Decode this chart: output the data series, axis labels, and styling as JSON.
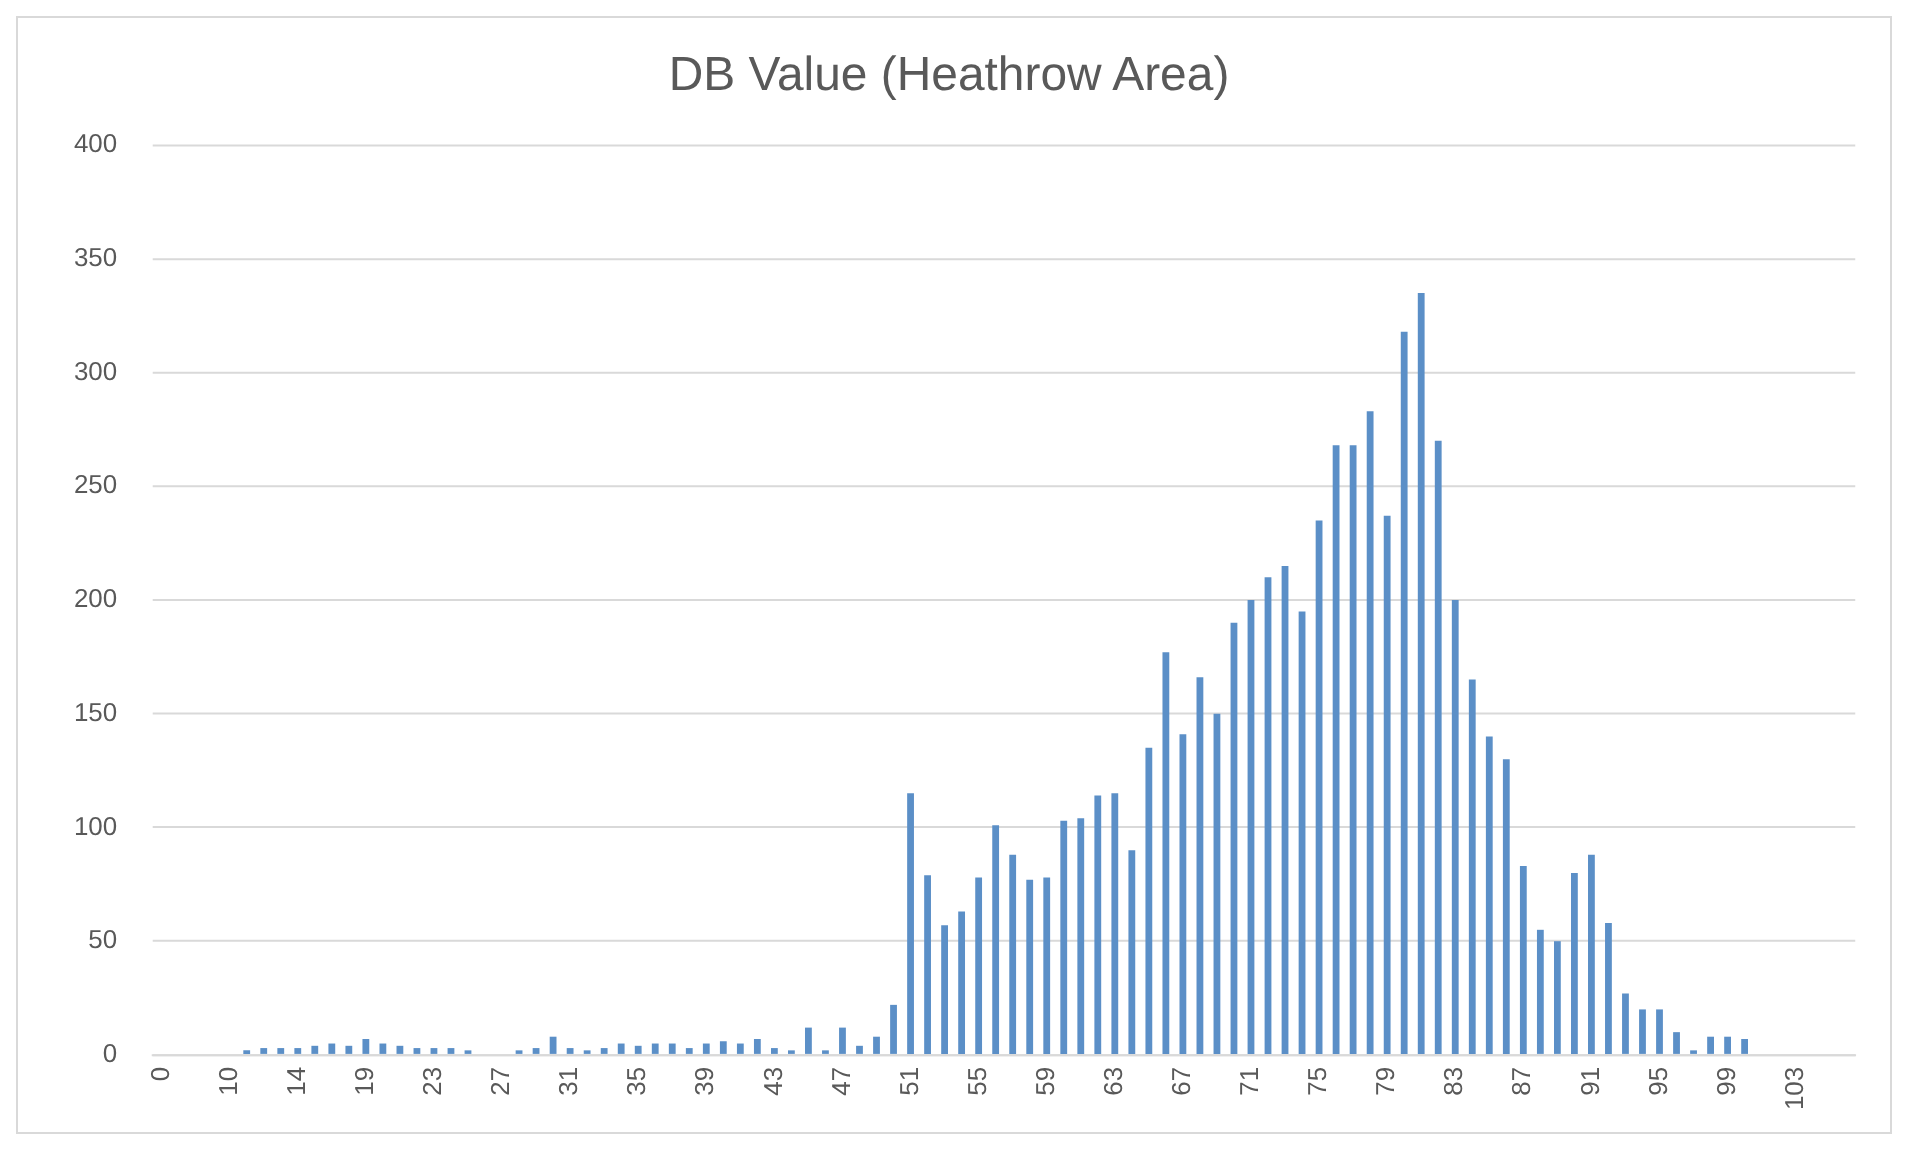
{
  "chart_data": {
    "type": "bar",
    "title": "DB Value (Heathrow Area)",
    "categories": [
      "0",
      null,
      null,
      null,
      "10",
      null,
      null,
      null,
      "14",
      null,
      null,
      null,
      "19",
      null,
      null,
      null,
      "23",
      null,
      null,
      null,
      "27",
      null,
      null,
      null,
      "31",
      null,
      null,
      null,
      "35",
      null,
      null,
      null,
      "39",
      null,
      null,
      null,
      "43",
      null,
      null,
      null,
      "47",
      null,
      null,
      null,
      "51",
      null,
      null,
      null,
      "55",
      null,
      null,
      null,
      "59",
      null,
      null,
      null,
      "63",
      null,
      null,
      null,
      "67",
      null,
      null,
      null,
      "71",
      null,
      null,
      null,
      "75",
      null,
      null,
      null,
      "79",
      null,
      null,
      null,
      "83",
      null,
      null,
      null,
      "87",
      null,
      null,
      null,
      "91",
      null,
      null,
      null,
      "95",
      null,
      null,
      null,
      "99",
      null,
      null,
      null,
      "103",
      null,
      null,
      null
    ],
    "values": [
      0,
      0,
      0,
      0,
      0,
      2,
      3,
      3,
      3,
      4,
      5,
      4,
      7,
      5,
      4,
      3,
      3,
      3,
      2,
      0,
      0,
      2,
      3,
      8,
      3,
      2,
      3,
      5,
      4,
      5,
      5,
      3,
      5,
      6,
      5,
      7,
      3,
      2,
      12,
      2,
      12,
      4,
      8,
      22,
      115,
      79,
      57,
      63,
      78,
      101,
      88,
      77,
      78,
      103,
      104,
      114,
      115,
      90,
      135,
      177,
      141,
      166,
      150,
      190,
      200,
      210,
      215,
      195,
      235,
      268,
      268,
      283,
      237,
      318,
      335,
      270,
      200,
      165,
      140,
      130,
      83,
      55,
      50,
      80,
      88,
      58,
      27,
      20,
      20,
      10,
      2,
      8,
      8,
      7,
      0,
      0,
      0,
      0,
      0,
      0
    ],
    "color": "#5b8fc7",
    "ylim": [
      0,
      400
    ],
    "yticks": [
      0,
      50,
      100,
      150,
      200,
      250,
      300,
      350,
      400
    ],
    "grid": "y"
  }
}
